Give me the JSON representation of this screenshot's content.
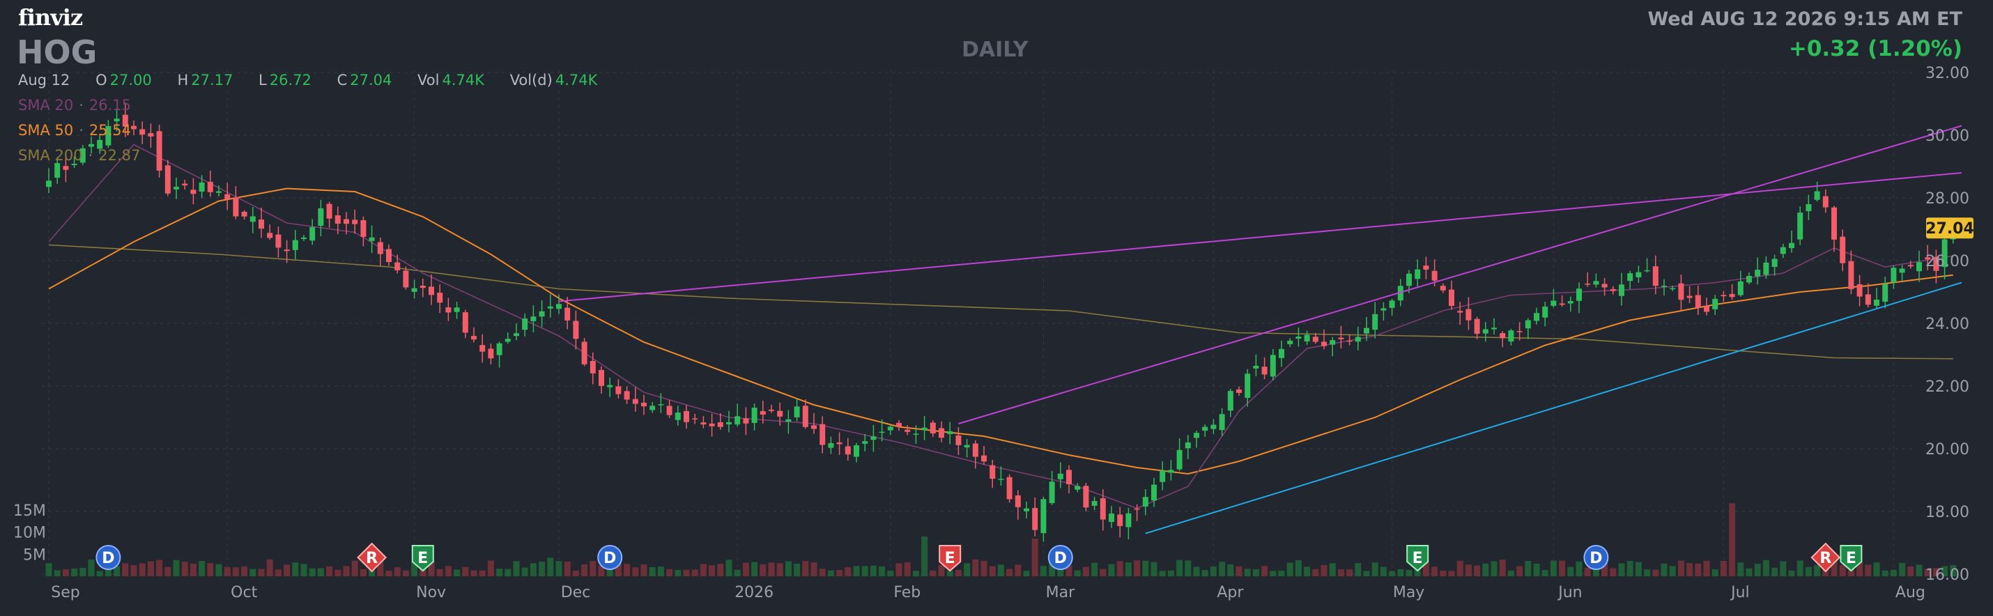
{
  "header": {
    "logo": "finviz",
    "ticker": "HOG",
    "period": "DAILY",
    "datetime": "Wed AUG 12 2026 9:15 AM ET",
    "change": "+0.32 (1.20%)"
  },
  "ohlc": {
    "date": "Aug 12",
    "open_label": "O",
    "open": "27.00",
    "high_label": "H",
    "high": "27.17",
    "low_label": "L",
    "low": "26.72",
    "close_label": "C",
    "close": "27.04",
    "vol_label": "Vol",
    "vol": "4.74K",
    "vold_label": "Vol(d)",
    "vold": "4.74K"
  },
  "indicators": {
    "sma20": {
      "label": "SMA 20",
      "value": "26.15"
    },
    "sma50": {
      "label": "SMA 50",
      "value": "25.54"
    },
    "sma200": {
      "label": "SMA 200",
      "value": "22.87"
    }
  },
  "colors": {
    "background": "#22262f",
    "up": "#2ebd5b",
    "down": "#f25d69",
    "sma20": "#7b3f74",
    "sma50": "#f08a2c",
    "sma200": "#8a7a3c",
    "trend_magenta": "#c042d6",
    "trend_blue": "#22a9e6",
    "last_price_tag": "#f0c12f",
    "grid": "#343944"
  },
  "chart_data": {
    "type": "candlestick",
    "ylim": [
      16,
      32
    ],
    "y_ticks": [
      "32.00",
      "30.00",
      "28.00",
      "26.00",
      "24.00",
      "22.00",
      "20.00",
      "18.00",
      "16.00"
    ],
    "x_ticks": [
      {
        "label": "Sep",
        "i": 0
      },
      {
        "label": "Oct",
        "i": 21
      },
      {
        "label": "Nov",
        "i": 43
      },
      {
        "label": "Dec",
        "i": 60
      },
      {
        "label": "2026",
        "i": 81
      },
      {
        "label": "Feb",
        "i": 99
      },
      {
        "label": "Mar",
        "i": 117
      },
      {
        "label": "Apr",
        "i": 137
      },
      {
        "label": "May",
        "i": 158
      },
      {
        "label": "Jun",
        "i": 177
      },
      {
        "label": "Jul",
        "i": 197
      },
      {
        "label": "Aug",
        "i": 217
      }
    ],
    "volume_ticks": [
      "15M",
      "10M",
      "5M"
    ],
    "volume_max": 20000000,
    "last_price": "27.04",
    "anchors": [
      [
        0,
        28.8
      ],
      [
        2,
        29.0
      ],
      [
        8,
        30.4
      ],
      [
        12,
        29.8
      ],
      [
        14,
        28.2
      ],
      [
        18,
        28.4
      ],
      [
        24,
        27.2
      ],
      [
        28,
        26.1
      ],
      [
        32,
        27.5
      ],
      [
        36,
        27.2
      ],
      [
        41,
        25.5
      ],
      [
        44,
        25.1
      ],
      [
        48,
        24.3
      ],
      [
        52,
        22.8
      ],
      [
        56,
        24.2
      ],
      [
        60,
        24.7
      ],
      [
        64,
        22.2
      ],
      [
        68,
        21.5
      ],
      [
        72,
        21.2
      ],
      [
        76,
        20.9
      ],
      [
        80,
        20.7
      ],
      [
        84,
        21.3
      ],
      [
        88,
        21.1
      ],
      [
        91,
        20.3
      ],
      [
        95,
        19.9
      ],
      [
        99,
        20.5
      ],
      [
        103,
        20.8
      ],
      [
        106,
        20.5
      ],
      [
        110,
        19.5
      ],
      [
        114,
        18.2
      ],
      [
        116,
        17.6
      ],
      [
        118,
        19.2
      ],
      [
        121,
        18.6
      ],
      [
        124,
        17.9
      ],
      [
        126,
        17.5
      ],
      [
        128,
        18.2
      ],
      [
        130,
        19.0
      ],
      [
        134,
        20.1
      ],
      [
        138,
        21.3
      ],
      [
        141,
        22.3
      ],
      [
        143,
        22.6
      ],
      [
        146,
        23.2
      ],
      [
        148,
        23.5
      ],
      [
        152,
        23.3
      ],
      [
        156,
        24.1
      ],
      [
        158,
        24.8
      ],
      [
        161,
        25.8
      ],
      [
        164,
        25.2
      ],
      [
        166,
        24.1
      ],
      [
        168,
        23.6
      ],
      [
        172,
        23.7
      ],
      [
        175,
        24.3
      ],
      [
        178,
        24.6
      ],
      [
        181,
        25.4
      ],
      [
        184,
        25.0
      ],
      [
        187,
        25.7
      ],
      [
        190,
        25.3
      ],
      [
        193,
        24.7
      ],
      [
        195,
        24.5
      ],
      [
        197,
        24.9
      ],
      [
        201,
        25.5
      ],
      [
        204,
        26.2
      ],
      [
        206,
        27.4
      ],
      [
        208,
        28.1
      ],
      [
        210,
        26.9
      ],
      [
        212,
        25.3
      ],
      [
        214,
        24.8
      ],
      [
        216,
        25.2
      ],
      [
        218,
        25.9
      ],
      [
        220,
        26.1
      ],
      [
        222,
        25.8
      ],
      [
        223,
        26.7
      ],
      [
        224,
        27.04
      ]
    ],
    "sma20": [
      [
        0,
        26.6
      ],
      [
        10,
        29.7
      ],
      [
        18,
        28.6
      ],
      [
        28,
        27.2
      ],
      [
        36,
        26.9
      ],
      [
        44,
        25.6
      ],
      [
        52,
        24.6
      ],
      [
        60,
        23.6
      ],
      [
        70,
        21.8
      ],
      [
        80,
        21.0
      ],
      [
        90,
        20.8
      ],
      [
        100,
        20.2
      ],
      [
        110,
        19.5
      ],
      [
        120,
        18.9
      ],
      [
        128,
        18.1
      ],
      [
        134,
        18.8
      ],
      [
        140,
        21.2
      ],
      [
        148,
        23.2
      ],
      [
        156,
        23.6
      ],
      [
        164,
        24.4
      ],
      [
        172,
        24.9
      ],
      [
        180,
        25.0
      ],
      [
        188,
        25.1
      ],
      [
        196,
        25.3
      ],
      [
        204,
        25.6
      ],
      [
        210,
        26.4
      ],
      [
        216,
        25.8
      ],
      [
        224,
        26.15
      ]
    ],
    "sma50": [
      [
        0,
        25.1
      ],
      [
        10,
        26.6
      ],
      [
        20,
        27.9
      ],
      [
        28,
        28.3
      ],
      [
        36,
        28.2
      ],
      [
        44,
        27.4
      ],
      [
        52,
        26.2
      ],
      [
        60,
        24.8
      ],
      [
        70,
        23.4
      ],
      [
        80,
        22.4
      ],
      [
        90,
        21.4
      ],
      [
        100,
        20.7
      ],
      [
        110,
        20.4
      ],
      [
        120,
        19.8
      ],
      [
        128,
        19.4
      ],
      [
        134,
        19.2
      ],
      [
        140,
        19.6
      ],
      [
        148,
        20.3
      ],
      [
        156,
        21.0
      ],
      [
        166,
        22.2
      ],
      [
        176,
        23.3
      ],
      [
        186,
        24.1
      ],
      [
        196,
        24.6
      ],
      [
        206,
        25.0
      ],
      [
        214,
        25.2
      ],
      [
        224,
        25.54
      ]
    ],
    "sma200": [
      [
        0,
        26.5
      ],
      [
        20,
        26.2
      ],
      [
        40,
        25.8
      ],
      [
        60,
        25.1
      ],
      [
        80,
        24.8
      ],
      [
        100,
        24.6
      ],
      [
        120,
        24.4
      ],
      [
        140,
        23.7
      ],
      [
        160,
        23.6
      ],
      [
        180,
        23.5
      ],
      [
        200,
        23.1
      ],
      [
        210,
        22.9
      ],
      [
        224,
        22.87
      ]
    ],
    "trendlines": [
      {
        "color": "trend_magenta",
        "points": [
          [
            60,
            24.7
          ],
          [
            225,
            28.8
          ]
        ]
      },
      {
        "color": "trend_magenta",
        "points": [
          [
            107,
            20.8
          ],
          [
            225,
            30.3
          ]
        ]
      },
      {
        "color": "trend_blue",
        "points": [
          [
            129,
            17.3
          ],
          [
            225,
            25.3
          ]
        ]
      }
    ],
    "events": [
      {
        "i": 7,
        "letter": "D",
        "kind": "dividend"
      },
      {
        "i": 38,
        "letter": "R",
        "kind": "split"
      },
      {
        "i": 44,
        "letter": "E",
        "kind": "earnings"
      },
      {
        "i": 66,
        "letter": "D",
        "kind": "dividend"
      },
      {
        "i": 106,
        "letter": "E",
        "kind": "earnings-negative"
      },
      {
        "i": 119,
        "letter": "D",
        "kind": "dividend"
      },
      {
        "i": 161,
        "letter": "E",
        "kind": "earnings"
      },
      {
        "i": 182,
        "letter": "D",
        "kind": "dividend"
      },
      {
        "i": 209,
        "letter": "R",
        "kind": "split"
      },
      {
        "i": 212,
        "letter": "E",
        "kind": "earnings"
      }
    ]
  }
}
